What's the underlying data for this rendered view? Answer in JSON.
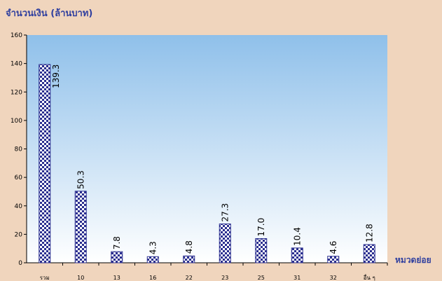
{
  "chart_data": {
    "type": "bar",
    "ylabel": "จำนวนเงิน (ล้านบาท)",
    "xlabel": "หมวดย่อย",
    "categories": [
      "รวม",
      "10",
      "13",
      "16",
      "22",
      "23",
      "25",
      "31",
      "32",
      "อื่น ๆ"
    ],
    "values": [
      139.3,
      50.3,
      7.8,
      4.3,
      4.8,
      27.3,
      17.0,
      10.4,
      4.6,
      12.8
    ],
    "data_labels": [
      "139.3",
      "50.3",
      "7.8",
      "4.3",
      "4.8",
      "27.3",
      "17.0",
      "10.4",
      "4.6",
      "12.8"
    ],
    "ylim": [
      0,
      160
    ],
    "yticks": [
      0,
      20,
      40,
      60,
      80,
      100,
      120,
      140,
      160
    ],
    "grid": false,
    "colors": {
      "bar_fill": "#2b2f8f",
      "bar_check": "#ffffff",
      "plot_top": "#8fc0ea",
      "plot_bottom": "#ffffff",
      "title": "#2f3f9f",
      "background": "#f0d5bd"
    }
  }
}
